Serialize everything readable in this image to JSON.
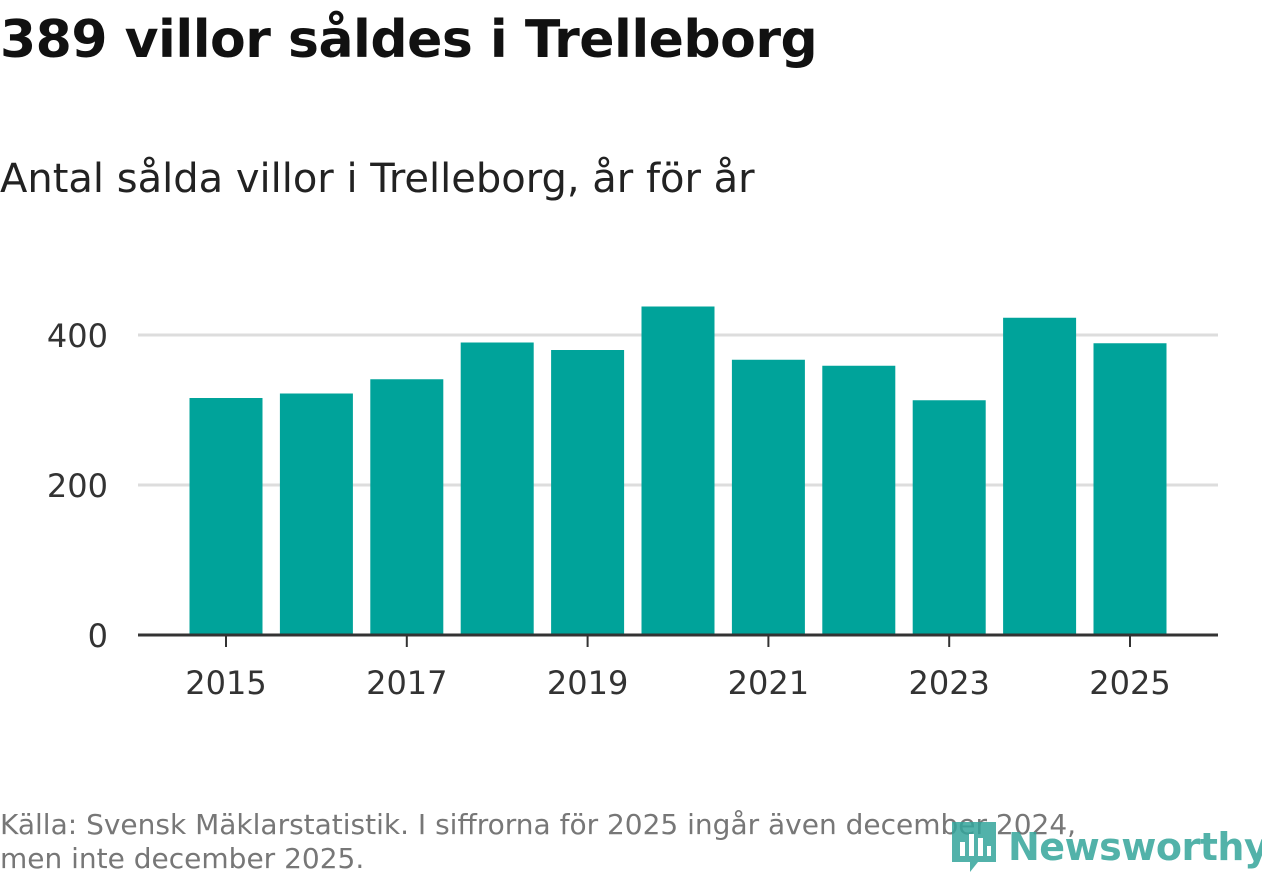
{
  "title": "389 villor såldes i Trelleborg",
  "subtitle": "Antal sålda villor i Trelleborg, år för år",
  "source_line1": "Källa: Svensk Mäklarstatistik. I siffrorna för 2025 ingår även december 2024,",
  "source_line2": "men inte december 2025.",
  "logo_text": "Newsworthy",
  "logo_icon": "newsworthy-logo-icon",
  "colors": {
    "bar": "#00a39a",
    "grid": "#dddddd",
    "axis": "#333333",
    "tick_text": "#333333",
    "logo": "#34a59b"
  },
  "chart_data": {
    "type": "bar",
    "title": "Antal sålda villor i Trelleborg, år för år",
    "xlabel": "",
    "ylabel": "",
    "categories": [
      "2015",
      "2016",
      "2017",
      "2018",
      "2019",
      "2020",
      "2021",
      "2022",
      "2023",
      "2024",
      "2025"
    ],
    "values": [
      316,
      322,
      341,
      390,
      380,
      438,
      367,
      359,
      313,
      423,
      389
    ],
    "ylim": [
      0,
      480
    ],
    "yticks": [
      0,
      200,
      400
    ],
    "xtick_labels": [
      "2015",
      "2017",
      "2019",
      "2021",
      "2023",
      "2025"
    ],
    "grid": true,
    "legend": "none"
  }
}
